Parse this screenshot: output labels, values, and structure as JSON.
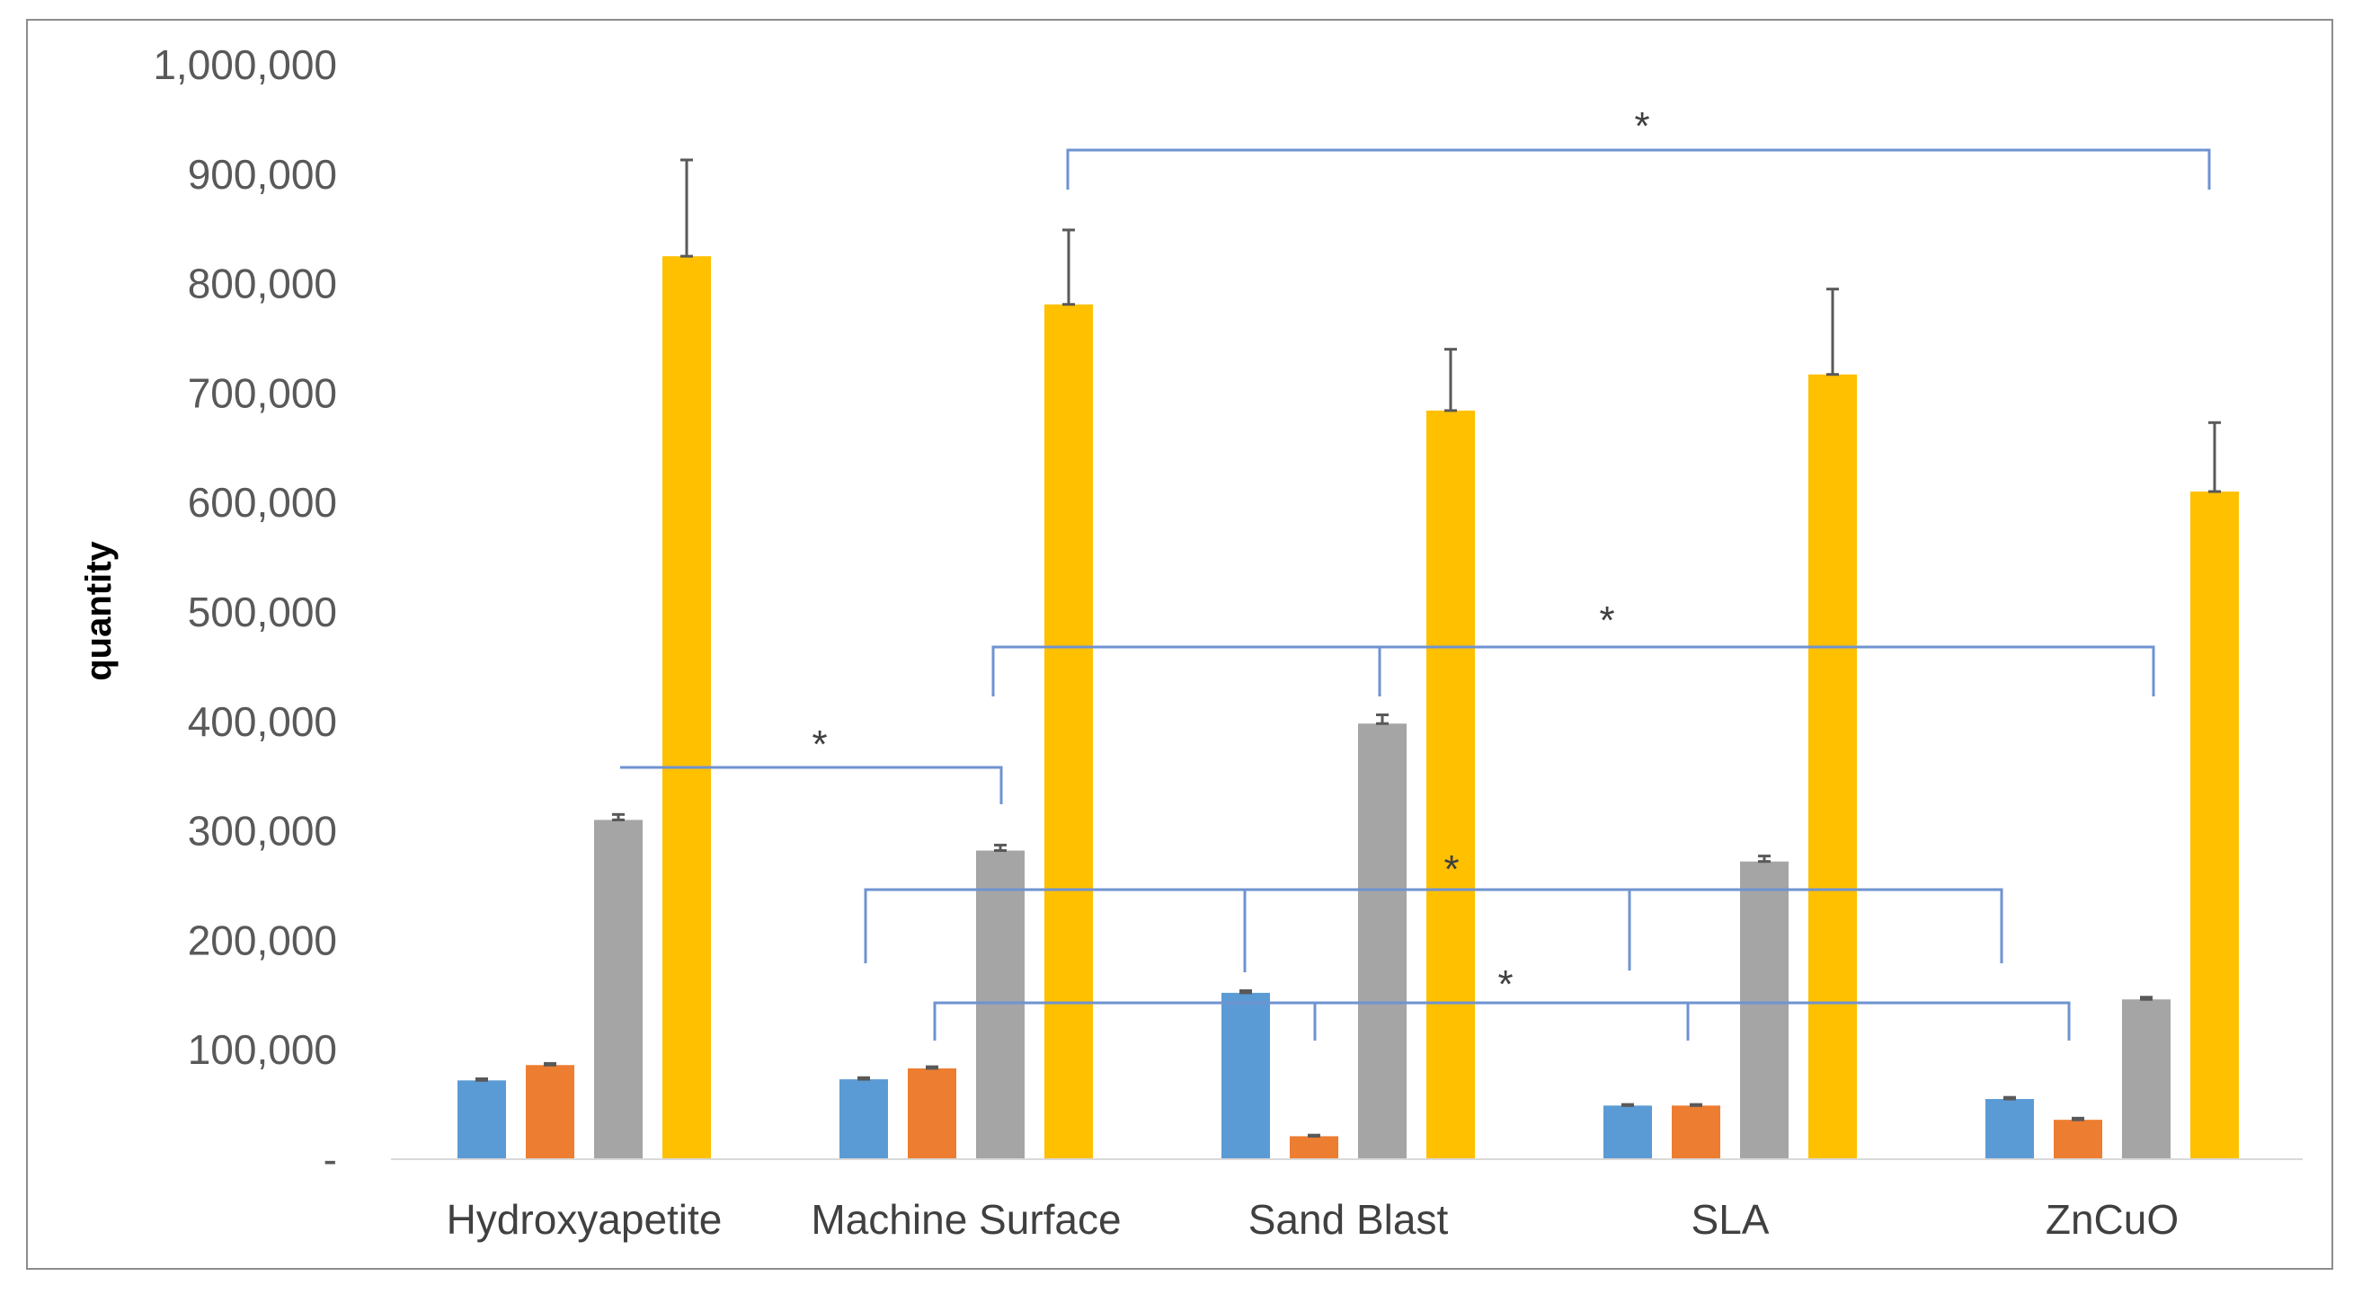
{
  "chart_data": {
    "type": "bar",
    "categories": [
      "Hydroxyapetite",
      "Machine Surface",
      "Sand Blast",
      "SLA",
      "ZnCuO"
    ],
    "series": [
      {
        "color": "#5b9bd5",
        "values": [
          72000,
          73000,
          152000,
          49000,
          55000
        ],
        "errors": [
          1500,
          1500,
          2000,
          1000,
          1500
        ]
      },
      {
        "color": "#ed7d31",
        "values": [
          86000,
          83000,
          21000,
          49000,
          36000
        ],
        "errors": [
          1500,
          1500,
          1000,
          1000,
          1500
        ]
      },
      {
        "color": "#a5a5a5",
        "values": [
          310000,
          282000,
          398000,
          272000,
          146000
        ],
        "errors": [
          5000,
          5000,
          8000,
          5000,
          2000
        ]
      },
      {
        "color": "#ffc000",
        "values": [
          825000,
          781000,
          684000,
          717000,
          610000
        ],
        "errors": [
          88000,
          68000,
          56000,
          78000,
          63000
        ]
      }
    ],
    "ylabel": "quantity",
    "ylim": [
      0,
      1000000
    ],
    "yticks": [
      {
        "value": 0,
        "label": "-"
      },
      {
        "value": 100000,
        "label": "100,000"
      },
      {
        "value": 200000,
        "label": "200,000"
      },
      {
        "value": 300000,
        "label": "300,000"
      },
      {
        "value": 400000,
        "label": "400,000"
      },
      {
        "value": 500000,
        "label": "500,000"
      },
      {
        "value": 600000,
        "label": "600,000"
      },
      {
        "value": 700000,
        "label": "700,000"
      },
      {
        "value": 800000,
        "label": "800,000"
      },
      {
        "value": 900000,
        "label": "900,000"
      },
      {
        "value": 1000000,
        "label": "1,000,000"
      }
    ],
    "grid": false,
    "legend": "none",
    "annotations": [
      {
        "text": "*",
        "from": "Hydroxyapetite",
        "to": "Machine Surface"
      },
      {
        "text": "*",
        "from": "Machine Surface",
        "to": "ZnCuO"
      },
      {
        "text": "*",
        "from": "Machine Surface",
        "to": "ZnCuO"
      },
      {
        "text": "*",
        "from": "Machine Surface",
        "to": "ZnCuO"
      },
      {
        "text": "*",
        "from": "Machine Surface",
        "to": "ZnCuO"
      }
    ]
  }
}
